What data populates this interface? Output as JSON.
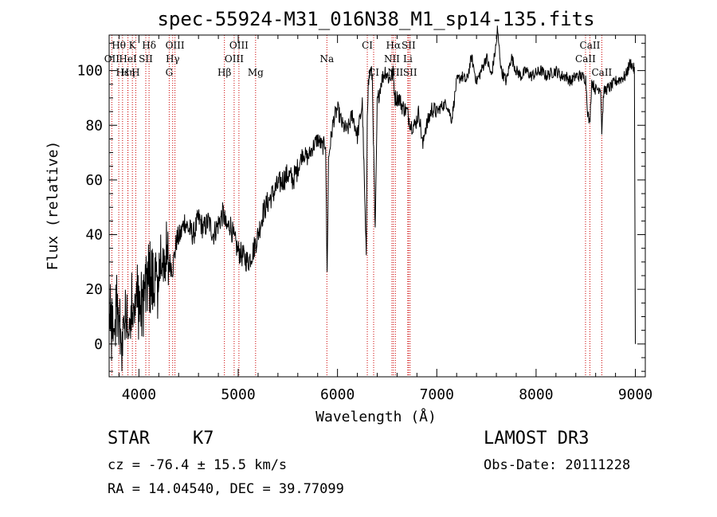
{
  "chart_data": {
    "type": "line",
    "title": "spec-55924-M31_016N38_M1_sp14-135.fits",
    "xlabel": "Wavelength (Å)",
    "ylabel": "Flux (relative)",
    "xlim": [
      3700,
      9100
    ],
    "ylim": [
      -12,
      113
    ],
    "xticks": [
      4000,
      5000,
      6000,
      7000,
      8000,
      9000
    ],
    "yticks": [
      0,
      20,
      40,
      60,
      80,
      100
    ],
    "line_color": "#000000",
    "marker_color": "#cc0000",
    "spectrum": {
      "x": [
        3700,
        3740,
        3780,
        3820,
        3860,
        3900,
        3940,
        3980,
        4020,
        4060,
        4100,
        4150,
        4200,
        4250,
        4300,
        4340,
        4380,
        4420,
        4460,
        4500,
        4550,
        4600,
        4650,
        4700,
        4750,
        4800,
        4850,
        4880,
        4920,
        4960,
        5000,
        5050,
        5100,
        5150,
        5200,
        5250,
        5300,
        5350,
        5400,
        5450,
        5500,
        5550,
        5600,
        5650,
        5700,
        5750,
        5800,
        5850,
        5880,
        5895,
        5910,
        5930,
        5960,
        6000,
        6050,
        6100,
        6150,
        6200,
        6250,
        6290,
        6300,
        6310,
        6330,
        6350,
        6380,
        6400,
        6440,
        6480,
        6520,
        6560,
        6580,
        6620,
        6650,
        6700,
        6740,
        6780,
        6820,
        6860,
        6880,
        6900,
        6950,
        7000,
        7050,
        7100,
        7150,
        7200,
        7250,
        7300,
        7350,
        7400,
        7450,
        7500,
        7550,
        7600,
        7610,
        7650,
        7700,
        7750,
        7800,
        7850,
        7900,
        7950,
        8000,
        8050,
        8100,
        8150,
        8200,
        8250,
        8300,
        8350,
        8400,
        8450,
        8500,
        8520,
        8540,
        8560,
        8600,
        8650,
        8662,
        8680,
        8700,
        8750,
        8800,
        8850,
        8900,
        8950,
        8980,
        8990,
        9000
      ],
      "y": [
        10,
        2,
        15,
        0,
        8,
        5,
        16,
        18,
        12,
        20,
        25,
        22,
        24,
        32,
        30,
        28,
        38,
        40,
        45,
        42,
        40,
        46,
        42,
        45,
        40,
        44,
        48,
        42,
        44,
        38,
        34,
        32,
        30,
        34,
        40,
        48,
        52,
        55,
        58,
        60,
        62,
        60,
        64,
        70,
        68,
        72,
        75,
        72,
        74,
        25,
        68,
        74,
        82,
        86,
        80,
        78,
        84,
        76,
        88,
        30,
        86,
        95,
        100,
        98,
        40,
        88,
        96,
        100,
        97,
        99,
        90,
        90,
        87,
        85,
        80,
        80,
        85,
        72,
        79,
        80,
        86,
        85,
        87,
        88,
        82,
        96,
        98,
        96,
        105,
        96,
        100,
        105,
        98,
        110,
        115,
        100,
        96,
        105,
        100,
        98,
        100,
        98,
        99,
        100,
        98,
        99,
        100,
        98,
        98,
        96,
        98,
        98,
        97,
        85,
        80,
        96,
        93,
        94,
        78,
        92,
        93,
        94,
        96,
        97,
        98,
        103,
        101,
        100,
        0
      ]
    },
    "lines": [
      {
        "label": "Hθ",
        "wave": 3797,
        "row": 1
      },
      {
        "label": "K",
        "wave": 3934,
        "row": 1
      },
      {
        "label": "Hδ",
        "wave": 4102,
        "row": 1
      },
      {
        "label": "OIII",
        "wave": 4363,
        "row": 1
      },
      {
        "label": "OIII",
        "wave": 5007,
        "row": 1
      },
      {
        "label": "CI",
        "wave": 6300,
        "row": 1
      },
      {
        "label": "Hα",
        "wave": 6563,
        "row": 1
      },
      {
        "label": "SII",
        "wave": 6716,
        "row": 1
      },
      {
        "label": "CaII",
        "wave": 8542,
        "row": 1
      },
      {
        "label": "OII",
        "wave": 3727,
        "row": 2
      },
      {
        "label": "HeI",
        "wave": 3889,
        "row": 2
      },
      {
        "label": "SII",
        "wave": 4069,
        "row": 2
      },
      {
        "label": "Hγ",
        "wave": 4340,
        "row": 2
      },
      {
        "label": "OIII",
        "wave": 4959,
        "row": 2
      },
      {
        "label": "Na",
        "wave": 5893,
        "row": 2
      },
      {
        "label": "NII",
        "wave": 6548,
        "row": 2
      },
      {
        "label": "Li",
        "wave": 6708,
        "row": 2
      },
      {
        "label": "CaII",
        "wave": 8498,
        "row": 2
      },
      {
        "label": "Hε",
        "wave": 3835,
        "row": 3
      },
      {
        "label": "Hη",
        "wave": 3889,
        "row": 3
      },
      {
        "label": "H",
        "wave": 3968,
        "row": 3
      },
      {
        "label": "G",
        "wave": 4305,
        "row": 3
      },
      {
        "label": "Hβ",
        "wave": 4861,
        "row": 3
      },
      {
        "label": "Mg",
        "wave": 5175,
        "row": 3
      },
      {
        "label": "CI",
        "wave": 6364,
        "row": 3
      },
      {
        "label": "NII",
        "wave": 6583,
        "row": 3
      },
      {
        "label": "SII",
        "wave": 6731,
        "row": 3
      },
      {
        "label": "CaII",
        "wave": 8662,
        "row": 3
      }
    ]
  },
  "info": {
    "class": "STAR",
    "subclass": "K7",
    "survey": "LAMOST DR3",
    "cz": "cz = -76.4 ± 15.5 km/s",
    "obs_date": "Obs-Date: 20111228",
    "coords": "RA =  14.04540, DEC =  39.77099"
  }
}
